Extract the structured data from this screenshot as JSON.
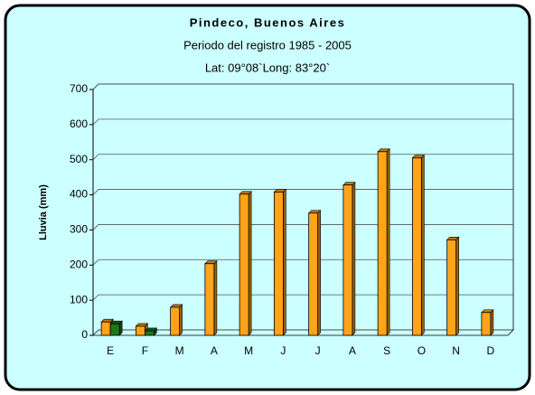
{
  "chart_data": {
    "type": "bar",
    "title": "Pindeco, Buenos Aires",
    "subtitle": [
      "Periodo del registro 1985 - 2005",
      "Lat: 09°08`Long: 83°20`"
    ],
    "y_label": "Lluvia (mm)",
    "categories": [
      "E",
      "F",
      "M",
      "A",
      "M",
      "J",
      "J",
      "A",
      "S",
      "O",
      "N",
      "D"
    ],
    "series": [
      {
        "color": "#ffa31a",
        "values": [
          38,
          26,
          80,
          204,
          402,
          408,
          348,
          428,
          523,
          505,
          272,
          65
        ]
      },
      {
        "color": "#1a7a1a",
        "values": [
          33,
          13,
          null,
          null,
          null,
          null,
          null,
          null,
          null,
          null,
          null,
          null
        ]
      }
    ],
    "ylim": [
      0,
      700
    ],
    "yticks": [
      0,
      100,
      200,
      300,
      400,
      500,
      600,
      700
    ],
    "grid": true
  }
}
